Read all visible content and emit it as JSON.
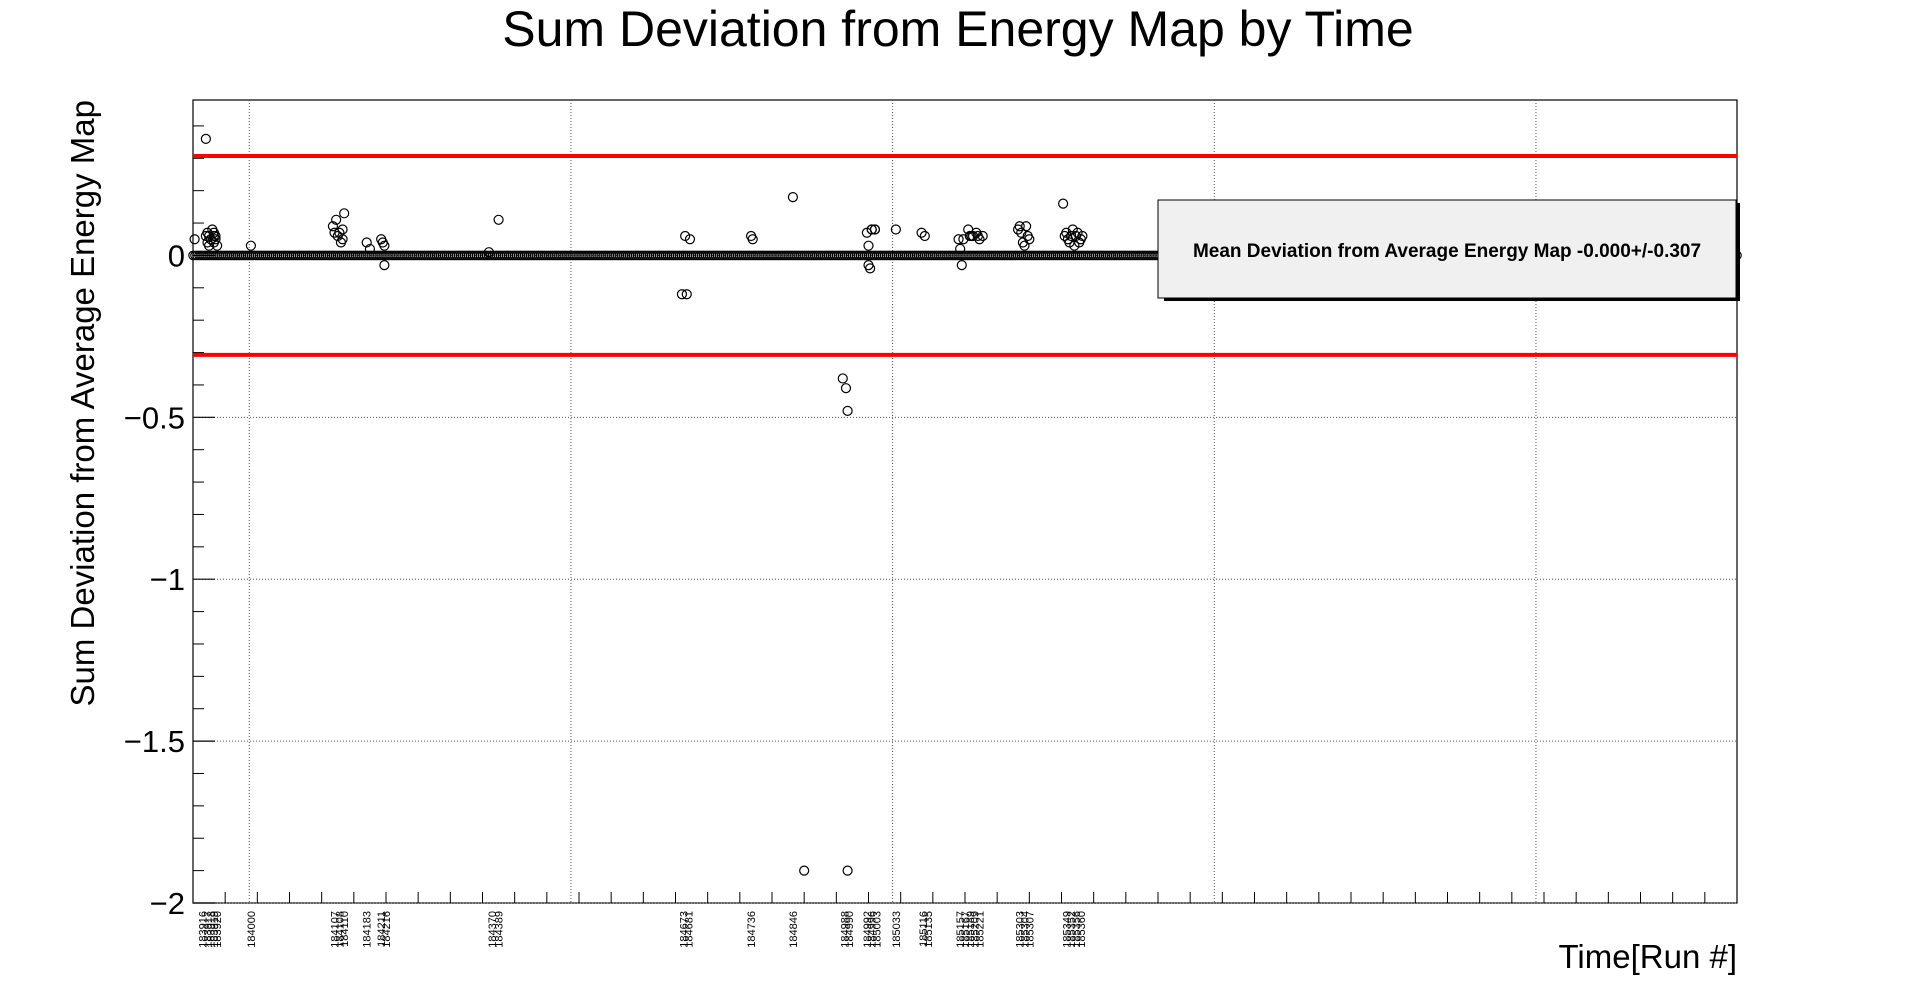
{
  "chart_data": {
    "type": "scatter",
    "title": "Sum Deviation from Energy Map by Time",
    "xlabel": "Time[Run #]",
    "ylabel": "Sum Deviation from Average Energy Map",
    "xlim": [
      183910,
      184870
    ],
    "ylim": [
      -2,
      0.48
    ],
    "grid": true,
    "y_ticks": [
      {
        "value": 0,
        "label": "0"
      },
      {
        "value": -0.5,
        "label": "−0.5"
      },
      {
        "value": -1,
        "label": "−1"
      },
      {
        "value": -1.5,
        "label": "−1.5"
      },
      {
        "value": -2,
        "label": "−2"
      }
    ],
    "x_grid": [
      183945,
      184145,
      184345,
      184545,
      184745
    ],
    "reference_lines": [
      {
        "y": 0.307,
        "color": "#ff0000"
      },
      {
        "y": -0.307,
        "color": "#ff0000"
      }
    ],
    "legend": {
      "text": "Mean Deviation from Average Energy Map -0.000+/-0.307",
      "placement": "top-right"
    },
    "zero_band": {
      "from": 183910,
      "to": 184870,
      "y": 0
    },
    "series": [
      {
        "marker": "open-circle",
        "color": "#000000",
        "x": [
          183911,
          183918,
          183918,
          183919,
          183919,
          183920,
          183920,
          183921,
          183922,
          183923,
          183923,
          183923,
          183924,
          183924,
          183925,
          183946,
          183997,
          183998,
          183999,
          184000,
          184001,
          184002,
          184003,
          184003,
          184004,
          184018,
          184020,
          184027,
          184028,
          184029,
          184029,
          184094,
          184100,
          184214,
          184216,
          184217,
          184219,
          184257,
          184258,
          184283,
          184314,
          184316,
          184317,
          184317,
          184329,
          184330,
          184330,
          184331,
          184332,
          184332,
          184334,
          184334,
          184347,
          184363,
          184365,
          184386,
          184387,
          184388,
          184389,
          184392,
          184393,
          184394,
          184395,
          184397,
          184398,
          184399,
          184401,
          184423,
          184424,
          184425,
          184426,
          184427,
          184428,
          184429,
          184430,
          184451,
          184452,
          184453,
          184454,
          184455,
          184456,
          184457,
          184458,
          184459,
          184460,
          184461,
          184462,
          184463
        ],
        "y": [
          0.05,
          0.36,
          0.06,
          0.04,
          0.07,
          0.03,
          0.06,
          0.05,
          0.08,
          0.06,
          0.04,
          0.07,
          0.05,
          0.06,
          0.03,
          0.03,
          0.09,
          0.07,
          0.11,
          0.06,
          0.07,
          0.04,
          0.08,
          0.05,
          0.13,
          0.04,
          0.02,
          0.05,
          0.04,
          -0.03,
          0.03,
          0.01,
          0.11,
          -0.12,
          0.06,
          -0.12,
          0.05,
          0.06,
          0.05,
          0.18,
          -0.38,
          -0.41,
          -0.48,
          -1.9,
          0.07,
          0.03,
          -0.03,
          -0.04,
          0.08,
          0.08,
          0.08,
          0.08,
          0.08,
          0.07,
          0.06,
          0.05,
          0.02,
          -0.03,
          0.05,
          0.08,
          0.06,
          0.06,
          0.06,
          0.07,
          0.06,
          0.05,
          0.06,
          0.08,
          0.09,
          0.07,
          0.04,
          0.03,
          0.09,
          0.06,
          0.05,
          0.16,
          0.06,
          0.07,
          0.05,
          0.04,
          0.06,
          0.08,
          0.03,
          0.06,
          0.07,
          0.04,
          0.05,
          0.06
        ]
      }
    ],
    "extra_points": [
      {
        "x": 184290,
        "y": -1.9
      }
    ],
    "x_tick_labels": [
      {
        "x": 183916,
        "label": "183916"
      },
      {
        "x": 183919,
        "label": "183917"
      },
      {
        "x": 183921,
        "label": "183918"
      },
      {
        "x": 183923,
        "label": "183919"
      },
      {
        "x": 183925,
        "label": "183920"
      },
      {
        "x": 183946,
        "label": "184000"
      },
      {
        "x": 183998,
        "label": "184107"
      },
      {
        "x": 184001,
        "label": "184108"
      },
      {
        "x": 184004,
        "label": "184110"
      },
      {
        "x": 184018,
        "label": "184183"
      },
      {
        "x": 184027,
        "label": "184211"
      },
      {
        "x": 184030,
        "label": "184216"
      },
      {
        "x": 184096,
        "label": "184370"
      },
      {
        "x": 184100,
        "label": "184389"
      },
      {
        "x": 184215,
        "label": "184673"
      },
      {
        "x": 184218,
        "label": "184681"
      },
      {
        "x": 184257,
        "label": "184736"
      },
      {
        "x": 184283,
        "label": "184846"
      },
      {
        "x": 184315,
        "label": "184988"
      },
      {
        "x": 184318,
        "label": "184990"
      },
      {
        "x": 184329,
        "label": "184992"
      },
      {
        "x": 184332,
        "label": "184996"
      },
      {
        "x": 184335,
        "label": "185003"
      },
      {
        "x": 184347,
        "label": "185033"
      },
      {
        "x": 184364,
        "label": "185116"
      },
      {
        "x": 184367,
        "label": "185135"
      },
      {
        "x": 184387,
        "label": "185157"
      },
      {
        "x": 184390,
        "label": "185167"
      },
      {
        "x": 184393,
        "label": "185189"
      },
      {
        "x": 184396,
        "label": "185209"
      },
      {
        "x": 184399,
        "label": "185221"
      },
      {
        "x": 184424,
        "label": "185303"
      },
      {
        "x": 184427,
        "label": "185304"
      },
      {
        "x": 184430,
        "label": "185307"
      },
      {
        "x": 184453,
        "label": "185349"
      },
      {
        "x": 184456,
        "label": "185352"
      },
      {
        "x": 184459,
        "label": "185356"
      },
      {
        "x": 184462,
        "label": "185360"
      }
    ]
  }
}
